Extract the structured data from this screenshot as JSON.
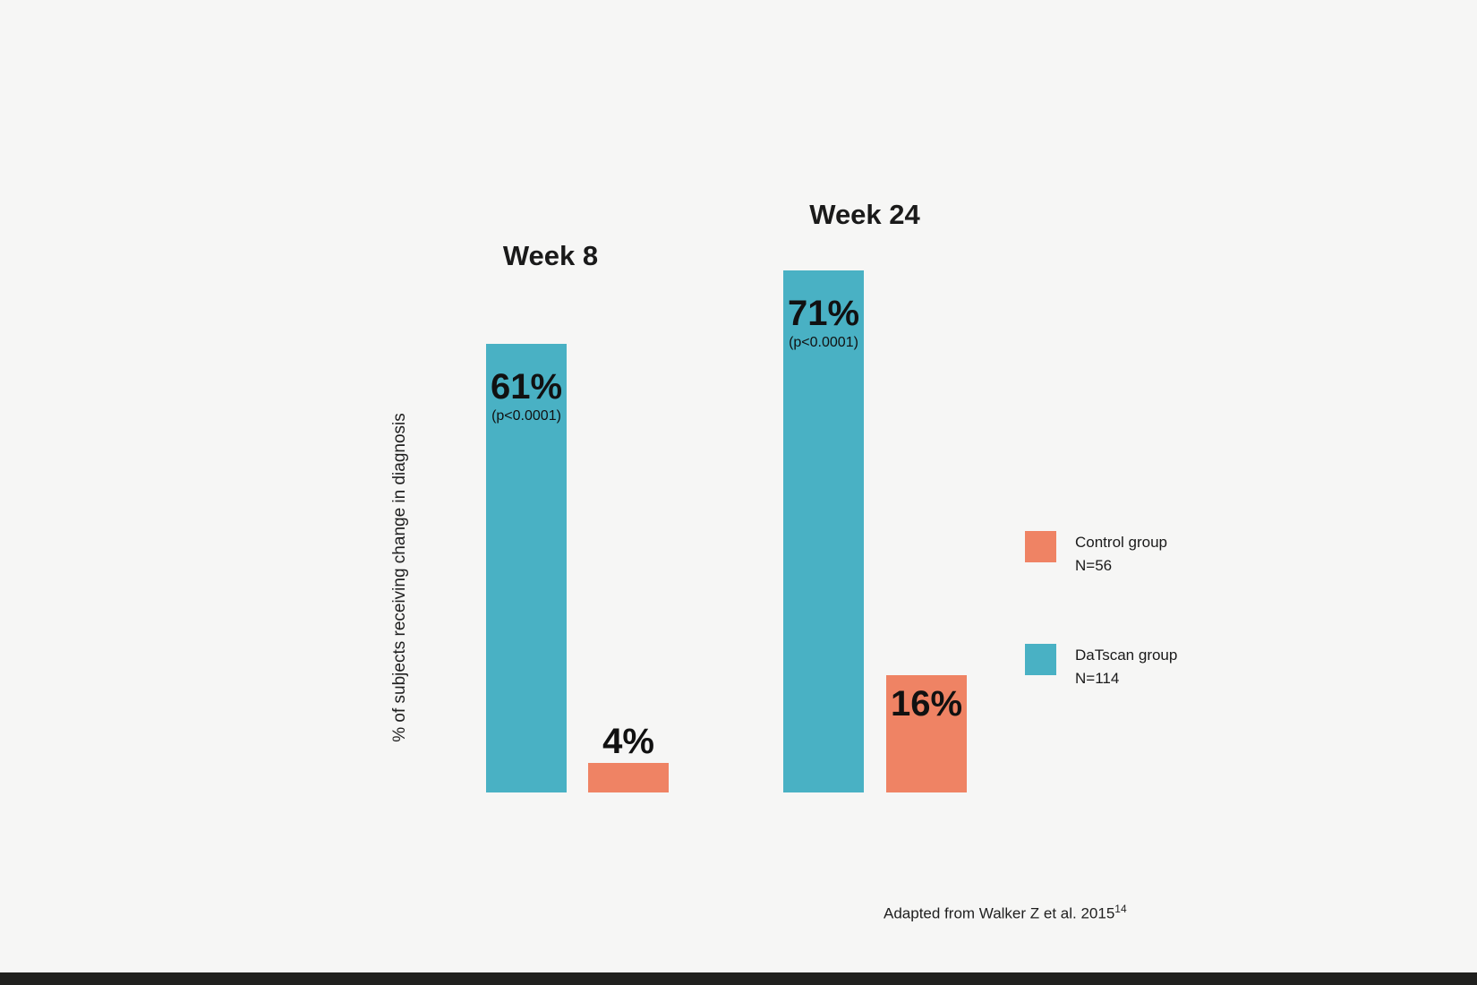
{
  "page": {
    "background": "#f6f6f5",
    "bottom_strip_color": "#20201e"
  },
  "chart_data": {
    "type": "bar",
    "ylabel": "% of subjects receiving change in diagnosis",
    "categories": [
      "Week 8",
      "Week 24"
    ],
    "ylim": [
      0,
      100
    ],
    "grid": false,
    "legend_position": "right",
    "series": [
      {
        "name": "DaTscan group",
        "n": "N=114",
        "color": "#49b1c4",
        "values": [
          61,
          71
        ],
        "value_labels": [
          "61%",
          "71%"
        ],
        "p_labels": [
          "(p<0.0001)",
          "(p<0.0001)"
        ]
      },
      {
        "name": "Control group",
        "n": "N=56",
        "color": "#ef8364",
        "values": [
          4,
          16
        ],
        "value_labels": [
          "4%",
          "16%"
        ]
      }
    ]
  },
  "legend": {
    "items": [
      {
        "label": "Control group",
        "n": "N=56",
        "color": "#ef8364"
      },
      {
        "label": "DaTscan group",
        "n": "N=114",
        "color": "#49b1c4"
      }
    ]
  },
  "citation": {
    "text": "Adapted from Walker Z et al. 2015",
    "superscript": "14"
  }
}
